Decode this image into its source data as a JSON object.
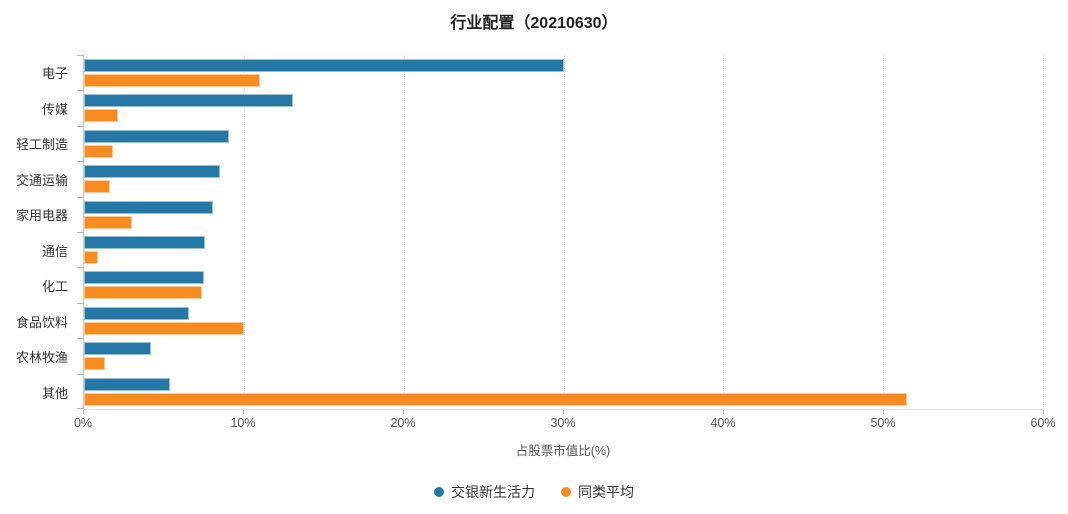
{
  "chart_data": {
    "type": "bar",
    "orientation": "horizontal",
    "title": "行业配置（20210630）",
    "xlabel": "占股票市值比(%)",
    "categories": [
      "电子",
      "传媒",
      "轻工制造",
      "交通运输",
      "家用电器",
      "通信",
      "化工",
      "食品饮料",
      "农林牧渔",
      "其他"
    ],
    "series": [
      {
        "name": "交银新生活力",
        "color": "#2578A5",
        "values": [
          30.0,
          13.1,
          9.1,
          8.5,
          8.1,
          7.6,
          7.5,
          6.6,
          4.2,
          5.4
        ]
      },
      {
        "name": "同类平均",
        "color": "#F68B1F",
        "values": [
          11.0,
          2.1,
          1.8,
          1.6,
          3.0,
          0.9,
          7.4,
          10.0,
          1.3,
          51.5
        ]
      }
    ],
    "x_ticks": [
      {
        "value": 0,
        "label": "0%"
      },
      {
        "value": 10,
        "label": "10%"
      },
      {
        "value": 20,
        "label": "20%"
      },
      {
        "value": 30,
        "label": "30%"
      },
      {
        "value": 40,
        "label": "40%"
      },
      {
        "value": 50,
        "label": "50%"
      },
      {
        "value": 60,
        "label": "60%"
      }
    ],
    "xlim": [
      0,
      60
    ],
    "grid": true,
    "legend_position": "bottom"
  }
}
